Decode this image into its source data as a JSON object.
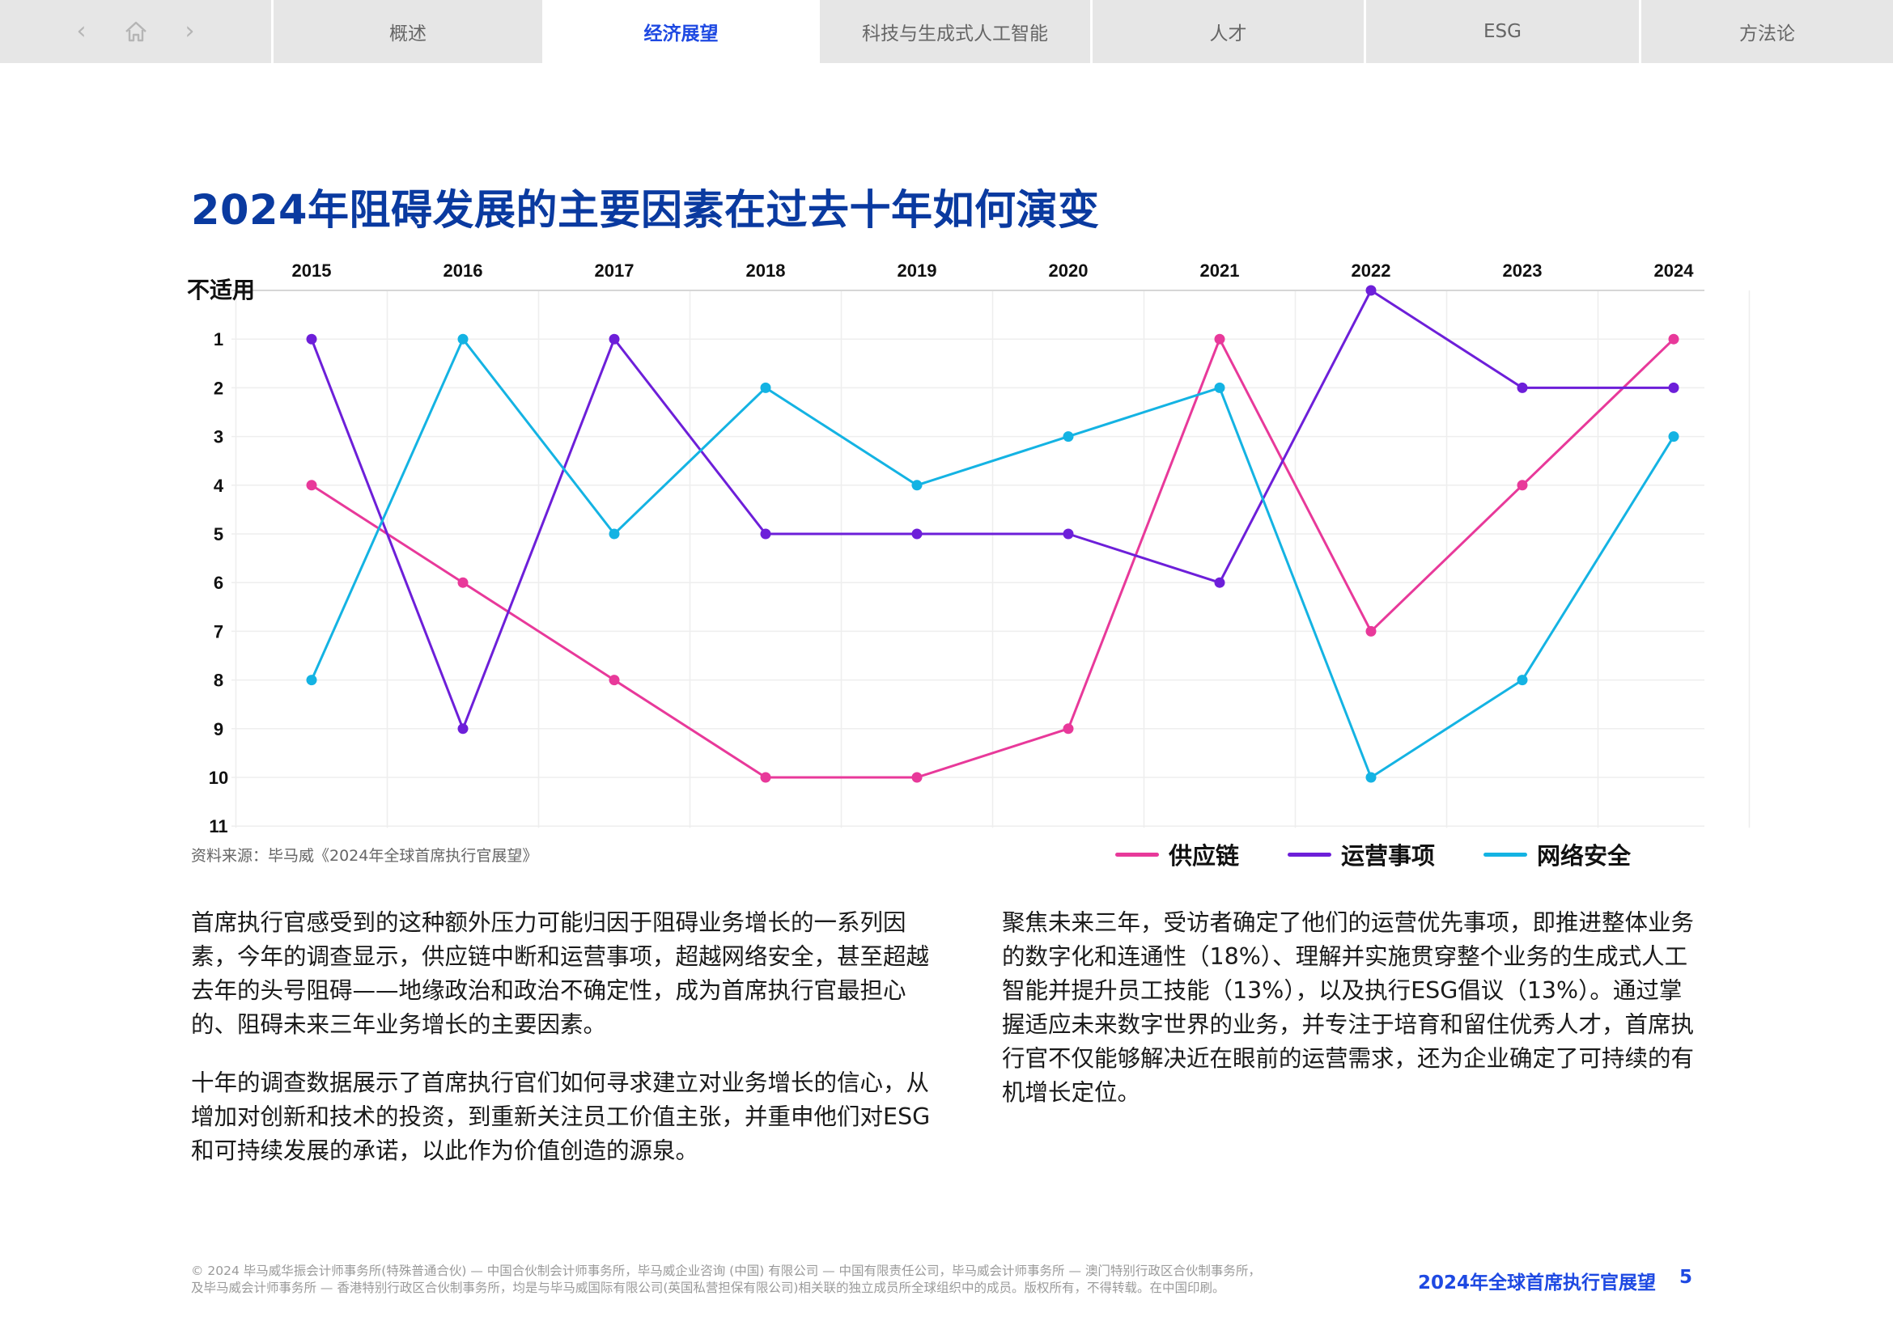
{
  "nav": {
    "back_icon": "chevron-left-icon",
    "home_icon": "home-icon",
    "forward_icon": "chevron-right-icon",
    "tabs": [
      {
        "label": "概述",
        "active": false
      },
      {
        "label": "经济展望",
        "active": true
      },
      {
        "label": "科技与生成式人工智能",
        "active": false
      },
      {
        "label": "人才",
        "active": false
      },
      {
        "label": "ESG",
        "active": false
      },
      {
        "label": "方法论",
        "active": false
      }
    ]
  },
  "title": "2024年阻碍发展的主要因素在过去十年如何演变",
  "chart_data": {
    "type": "line",
    "x": [
      "2015",
      "2016",
      "2017",
      "2018",
      "2019",
      "2020",
      "2021",
      "2022",
      "2023",
      "2024"
    ],
    "y_na_label": "不适用",
    "y_ticks": [
      "1",
      "2",
      "3",
      "4",
      "5",
      "6",
      "7",
      "8",
      "9",
      "10",
      "11"
    ],
    "y_inverted": true,
    "ylim": [
      0,
      11
    ],
    "grid": true,
    "legend_position": "bottom-right",
    "series": [
      {
        "name": "供应链",
        "color": "#e8399a",
        "values": [
          4,
          6,
          8,
          10,
          10,
          9,
          1,
          7,
          4,
          1
        ]
      },
      {
        "name": "运营事项",
        "color": "#6d1fd9",
        "values": [
          1,
          9,
          1,
          5,
          5,
          5,
          6,
          0,
          2,
          2
        ]
      },
      {
        "name": "网络安全",
        "color": "#14b3e3",
        "values": [
          8,
          1,
          5,
          2,
          4,
          3,
          2,
          10,
          8,
          3
        ]
      }
    ]
  },
  "source": "资料来源：毕马威《2024年全球首席执行官展望》",
  "body": {
    "left": [
      "首席执行官感受到的这种额外压力可能归因于阻碍业务增长的一系列因素，今年的调查显示，供应链中断和运营事项，超越网络安全，甚至超越去年的头号阻碍——地缘政治和政治不确定性，成为首席执行官最担心的、阻碍未来三年业务增长的主要因素。",
      "十年的调查数据展示了首席执行官们如何寻求建立对业务增长的信心，从增加对创新和技术的投资，到重新关注员工价值主张，并重申他们对ESG和可持续发展的承诺，以此作为价值创造的源泉。"
    ],
    "right": [
      "聚焦未来三年，受访者确定了他们的运营优先事项，即推进整体业务的数字化和连通性（18%）、理解并实施贯穿整个业务的生成式人工智能并提升员工技能（13%），以及执行ESG倡议（13%）。通过掌握适应未来数字世界的业务，并专注于培育和留住优秀人才，首席执行官不仅能够解决近在眼前的运营需求，还为企业确定了可持续的有机增长定位。"
    ]
  },
  "footer": {
    "legal_line1": "© 2024 毕马威华振会计师事务所(特殊普通合伙) — 中国合伙制会计师事务所，毕马威企业咨询 (中国) 有限公司 — 中国有限责任公司，毕马威会计师事务所 — 澳门特别行政区合伙制事务所，",
    "legal_line2": "及毕马威会计师事务所 — 香港特别行政区合伙制事务所，均是与毕马威国际有限公司(英国私营担保有限公司)相关联的独立成员所全球组织中的成员。版权所有，不得转载。在中国印刷。",
    "title": "2024年全球首席执行官展望",
    "page": "5"
  }
}
